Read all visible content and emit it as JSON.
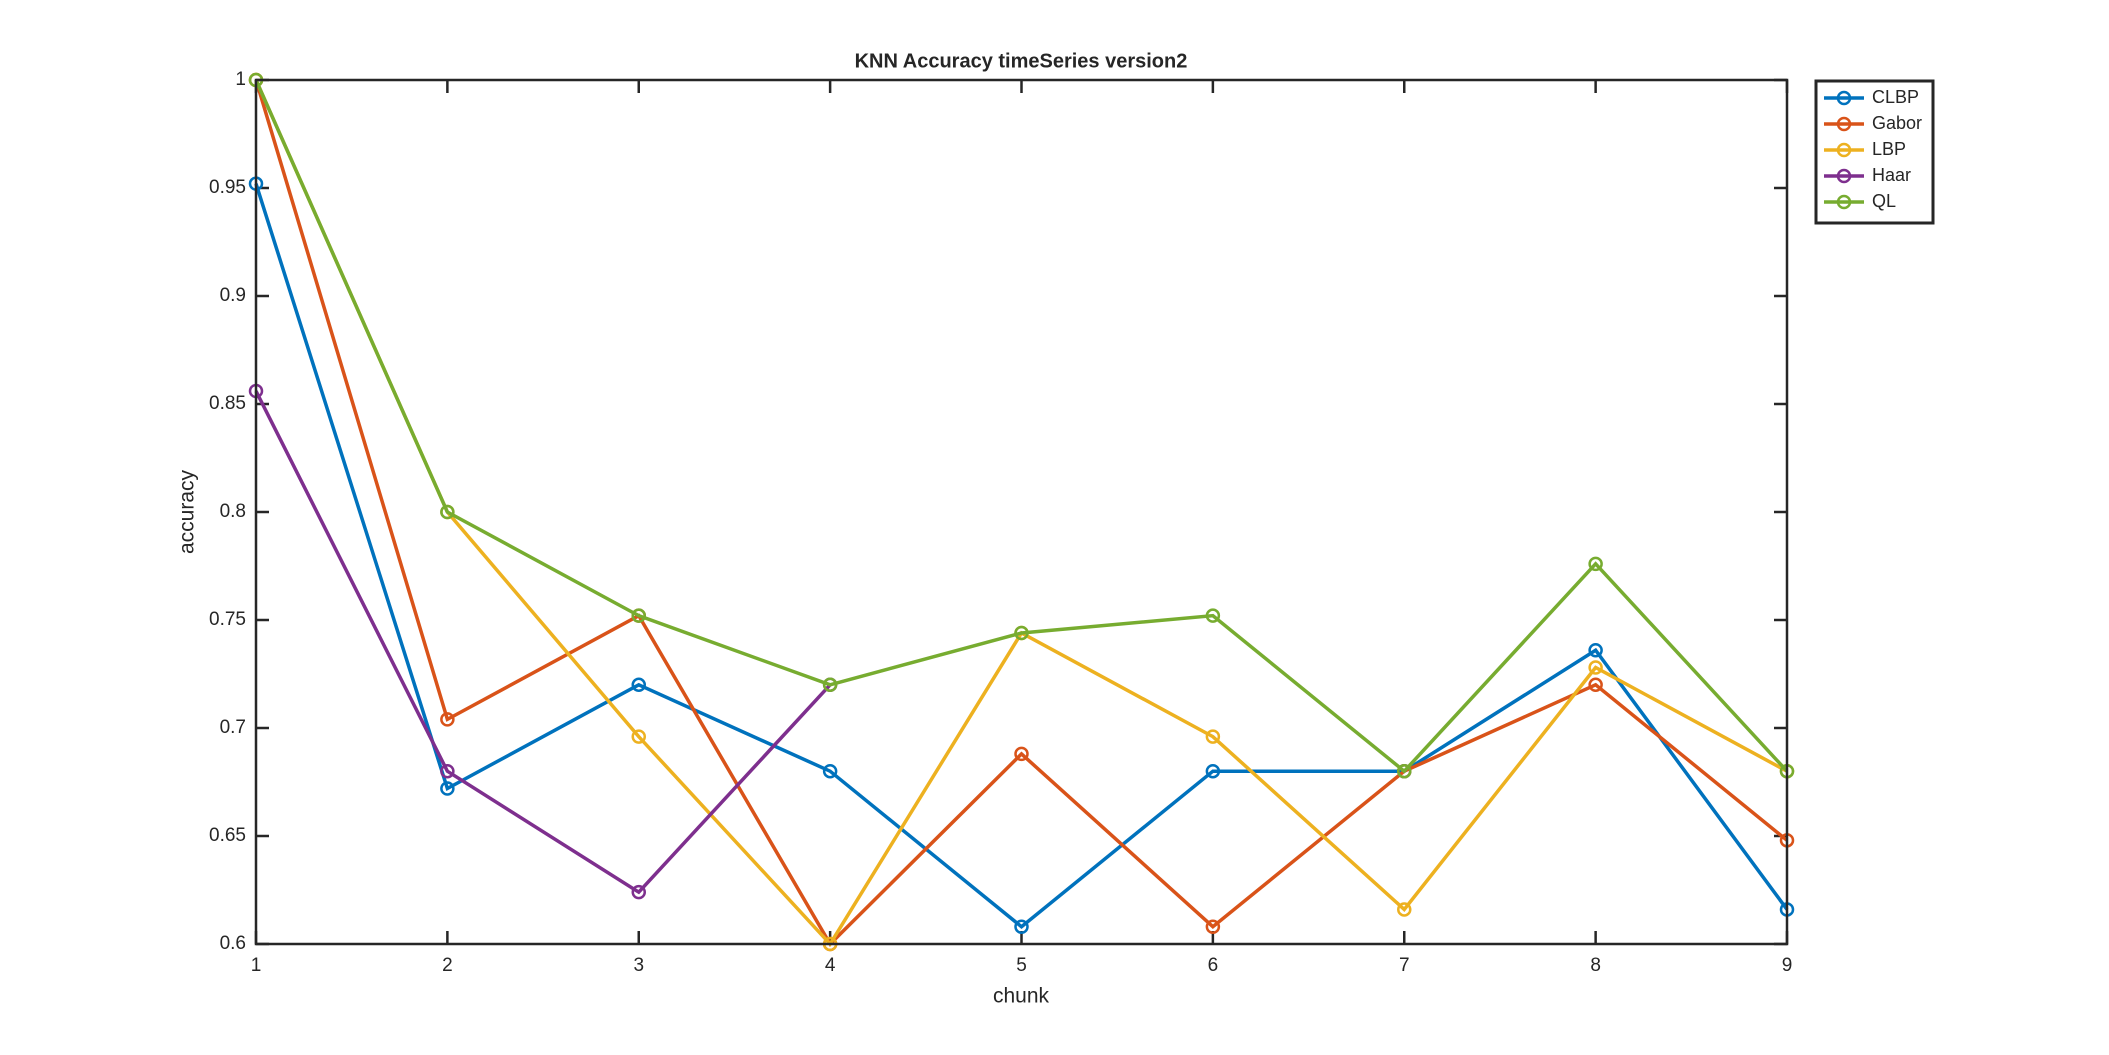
{
  "chart_data": {
    "type": "line",
    "title": "KNN Accuracy timeSeries version2",
    "xlabel": "chunk",
    "ylabel": "accuracy",
    "x": [
      1,
      2,
      3,
      4,
      5,
      6,
      7,
      8,
      9
    ],
    "xlim": [
      1,
      9
    ],
    "xticks": [
      1,
      2,
      3,
      4,
      5,
      6,
      7,
      8,
      9
    ],
    "ylim": [
      0.6,
      1
    ],
    "yticks": [
      0.6,
      0.65,
      0.7,
      0.75,
      0.8,
      0.85,
      0.9,
      0.95,
      1
    ],
    "legend": "outside-top-right",
    "series": [
      {
        "name": "CLBP",
        "color": "#0072BD",
        "values": [
          0.952,
          0.672,
          0.72,
          0.68,
          0.608,
          0.68,
          0.68,
          0.736,
          0.616
        ]
      },
      {
        "name": "Gabor",
        "color": "#D95319",
        "values": [
          1.0,
          0.704,
          0.752,
          0.6,
          0.688,
          0.608,
          0.68,
          0.72,
          0.648
        ]
      },
      {
        "name": "LBP",
        "color": "#EDB120",
        "values": [
          1.0,
          0.8,
          0.696,
          0.6,
          0.744,
          0.696,
          0.616,
          0.728,
          0.68
        ]
      },
      {
        "name": "Haar",
        "color": "#7E2F8E",
        "values": [
          0.856,
          0.68,
          0.624,
          0.72,
          null,
          null,
          null,
          null,
          null
        ]
      },
      {
        "name": "QL",
        "color": "#77AC30",
        "values": [
          1.0,
          0.8,
          0.752,
          0.72,
          0.744,
          0.752,
          0.68,
          0.776,
          0.68
        ]
      }
    ]
  }
}
